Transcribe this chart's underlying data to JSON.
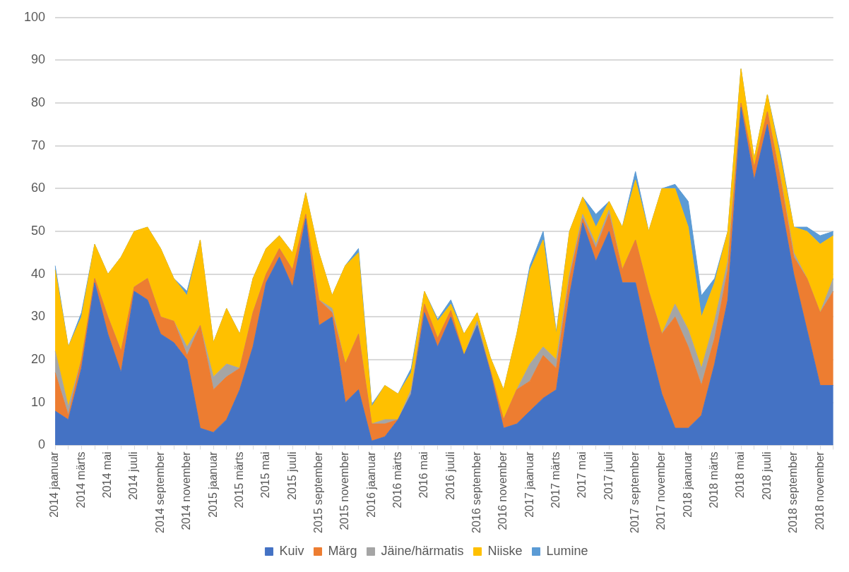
{
  "chart_data": {
    "type": "area",
    "stacked": true,
    "grid": "y",
    "legend": "bottom",
    "categories": [
      "2014 jaanuar",
      null,
      "2014 märts",
      null,
      "2014 mai",
      null,
      "2014 juuli",
      null,
      "2014 september",
      null,
      "2014 november",
      null,
      "2015 jaanuar",
      null,
      "2015 märts",
      null,
      "2015 mai",
      null,
      "2015 juuli",
      null,
      "2015 september",
      null,
      "2015 november",
      null,
      "2016 jaanuar",
      null,
      "2016 märts",
      null,
      "2016 mai",
      null,
      "2016 juuli",
      null,
      "2016 september",
      null,
      "2016 november",
      null,
      "2017 jaanuar",
      null,
      "2017 märts",
      null,
      "2017 mai",
      null,
      "2017 juuli",
      null,
      "2017 september",
      null,
      "2017 november",
      null,
      "2018 jaanuar",
      null,
      "2018 märts",
      null,
      "2018 mai",
      null,
      "2018 juuli",
      null,
      "2018 september",
      null,
      "2018 november",
      null
    ],
    "ylim": [
      0,
      100
    ],
    "yticks": [
      0,
      10,
      20,
      30,
      40,
      50,
      60,
      70,
      80,
      90,
      100
    ],
    "series": [
      {
        "name": "Kuiv",
        "color": "#4472c4",
        "values": [
          8,
          6,
          18,
          38,
          26,
          17,
          36,
          34,
          26,
          24,
          20,
          4,
          3,
          6,
          13,
          23,
          38,
          44,
          37,
          53,
          28,
          30,
          10,
          13,
          1,
          2,
          6,
          12,
          31,
          23,
          30,
          21,
          28,
          17,
          4,
          5,
          8,
          11,
          13,
          35,
          52,
          43,
          50,
          38,
          38,
          24,
          12,
          4,
          4,
          7,
          19,
          34,
          79,
          62,
          75,
          57,
          40,
          27,
          14,
          14
        ]
      },
      {
        "name": "Märg",
        "color": "#ed7d31",
        "values": [
          9,
          1,
          2,
          1,
          4,
          5,
          1,
          5,
          4,
          5,
          1,
          24,
          10,
          10,
          5,
          8,
          2,
          2,
          4,
          1,
          6,
          1,
          9,
          13,
          4,
          3,
          0,
          0,
          2,
          2,
          1.5,
          0,
          0,
          0.5,
          2,
          8,
          7,
          10,
          5,
          4,
          1,
          3,
          4,
          3,
          10,
          12,
          14,
          26,
          19,
          7,
          6,
          7,
          1,
          3,
          3,
          5,
          4,
          12,
          17,
          22
        ]
      },
      {
        "name": "Jäine/härmatis",
        "color": "#a5a5a5",
        "values": [
          5,
          2,
          0,
          0,
          0,
          0,
          0,
          0,
          0,
          0,
          2,
          0,
          3,
          3,
          0,
          0,
          0,
          0,
          0,
          0,
          0,
          1,
          0,
          0,
          0,
          1,
          0,
          1,
          0,
          0,
          0,
          0,
          1,
          0,
          0,
          0,
          4,
          2,
          2,
          1,
          1,
          1,
          1,
          0,
          0,
          0,
          0,
          3,
          4,
          4,
          4,
          2,
          0,
          0,
          0,
          0.5,
          1,
          0,
          0,
          3
        ]
      },
      {
        "name": "Niiske",
        "color": "#ffc000",
        "values": [
          19,
          14,
          10,
          8,
          10,
          22,
          13,
          12,
          16,
          10,
          12,
          20,
          8,
          13,
          8,
          8,
          6,
          3,
          4,
          5,
          11,
          3,
          23,
          19,
          4,
          8,
          6,
          4,
          3,
          4,
          1.5,
          5,
          2,
          3,
          7,
          13,
          22,
          25,
          6,
          10,
          4,
          4,
          2,
          10,
          14,
          14,
          34,
          27,
          24,
          12,
          9,
          7,
          8,
          2,
          4,
          4.5,
          6,
          11,
          16,
          10
        ]
      },
      {
        "name": "Lumine",
        "color": "#5b9bd5",
        "values": [
          1,
          0,
          1,
          0,
          0,
          0,
          0,
          0,
          0,
          0,
          1,
          0,
          0,
          0,
          0,
          0,
          0,
          0,
          0,
          0,
          0,
          0,
          0,
          1,
          0.5,
          0,
          0,
          1,
          0,
          0.5,
          1,
          0,
          0,
          0,
          0,
          0,
          1,
          2,
          0.5,
          0,
          0,
          3,
          0,
          0,
          2,
          0,
          0,
          1,
          6,
          5,
          1,
          0,
          0,
          0,
          0,
          1,
          0,
          1,
          2,
          1
        ]
      }
    ]
  }
}
